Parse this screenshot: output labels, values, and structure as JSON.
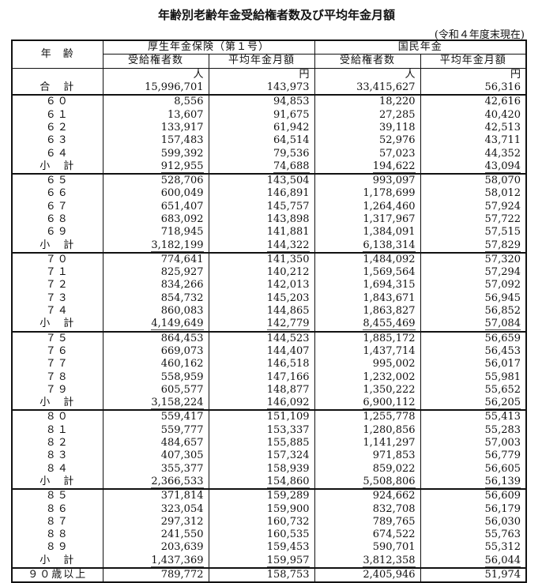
{
  "title": "年齢別老齢年金受給権者数及び平均年金月額",
  "as_of": "(令和４年度末現在)",
  "header": {
    "age": "年　齢",
    "kosei": "厚生年金保険（第１号）",
    "kokumin": "国民年金",
    "recipients": "受給権者数",
    "avg_monthly": "平均年金月額",
    "unit_persons": "人",
    "unit_yen": "円"
  },
  "total": {
    "label": "合　計",
    "values": [
      "15,996,701",
      "143,973",
      "33,415,627",
      "56,316"
    ]
  },
  "groups": [
    {
      "rows": [
        {
          "label": "６０",
          "values": [
            "8,556",
            "94,853",
            "18,220",
            "42,616"
          ]
        },
        {
          "label": "６１",
          "values": [
            "13,607",
            "91,675",
            "27,285",
            "40,420"
          ]
        },
        {
          "label": "６２",
          "values": [
            "133,917",
            "61,942",
            "39,118",
            "42,513"
          ]
        },
        {
          "label": "６３",
          "values": [
            "157,483",
            "64,514",
            "52,976",
            "43,711"
          ]
        },
        {
          "label": "６４",
          "values": [
            "599,392",
            "79,536",
            "57,023",
            "44,352"
          ]
        },
        {
          "label": "小　計",
          "subtotal": true,
          "values": [
            "912,955",
            "74,688",
            "194,622",
            "43,094"
          ]
        }
      ]
    },
    {
      "rows": [
        {
          "label": "６５",
          "values": [
            "528,706",
            "143,504",
            "993,097",
            "58,070"
          ]
        },
        {
          "label": "６６",
          "values": [
            "600,049",
            "146,891",
            "1,178,699",
            "58,012"
          ]
        },
        {
          "label": "６７",
          "values": [
            "651,407",
            "145,757",
            "1,264,460",
            "57,924"
          ]
        },
        {
          "label": "６８",
          "values": [
            "683,092",
            "143,898",
            "1,317,967",
            "57,722"
          ]
        },
        {
          "label": "６９",
          "values": [
            "718,945",
            "141,881",
            "1,384,091",
            "57,515"
          ]
        },
        {
          "label": "小　計",
          "subtotal": true,
          "values": [
            "3,182,199",
            "144,322",
            "6,138,314",
            "57,829"
          ]
        }
      ]
    },
    {
      "rows": [
        {
          "label": "７０",
          "values": [
            "774,641",
            "141,350",
            "1,484,092",
            "57,320"
          ]
        },
        {
          "label": "７１",
          "values": [
            "825,927",
            "140,212",
            "1,569,564",
            "57,294"
          ]
        },
        {
          "label": "７２",
          "values": [
            "834,266",
            "142,013",
            "1,694,315",
            "57,092"
          ]
        },
        {
          "label": "７３",
          "values": [
            "854,732",
            "145,203",
            "1,843,671",
            "56,945"
          ]
        },
        {
          "label": "７４",
          "values": [
            "860,083",
            "144,865",
            "1,863,827",
            "56,852"
          ]
        },
        {
          "label": "小　計",
          "subtotal": true,
          "values": [
            "4,149,649",
            "142,779",
            "8,455,469",
            "57,084"
          ]
        }
      ]
    },
    {
      "rows": [
        {
          "label": "７５",
          "values": [
            "864,453",
            "144,523",
            "1,885,172",
            "56,659"
          ]
        },
        {
          "label": "７６",
          "values": [
            "669,073",
            "144,407",
            "1,437,714",
            "56,453"
          ]
        },
        {
          "label": "７７",
          "values": [
            "460,162",
            "146,518",
            "995,002",
            "56,017"
          ]
        },
        {
          "label": "７８",
          "values": [
            "558,959",
            "147,166",
            "1,232,002",
            "55,981"
          ]
        },
        {
          "label": "７９",
          "values": [
            "605,577",
            "148,877",
            "1,350,222",
            "55,652"
          ]
        },
        {
          "label": "小　計",
          "subtotal": true,
          "values": [
            "3,158,224",
            "146,092",
            "6,900,112",
            "56,205"
          ]
        }
      ]
    },
    {
      "rows": [
        {
          "label": "８０",
          "values": [
            "559,417",
            "151,109",
            "1,255,778",
            "55,413"
          ]
        },
        {
          "label": "８１",
          "values": [
            "559,777",
            "153,337",
            "1,280,856",
            "55,283"
          ]
        },
        {
          "label": "８２",
          "values": [
            "484,657",
            "155,885",
            "1,141,297",
            "57,003"
          ]
        },
        {
          "label": "８３",
          "values": [
            "407,305",
            "157,324",
            "971,853",
            "56,779"
          ]
        },
        {
          "label": "８４",
          "values": [
            "355,377",
            "158,939",
            "859,022",
            "56,605"
          ]
        },
        {
          "label": "小　計",
          "subtotal": true,
          "values": [
            "2,366,533",
            "154,860",
            "5,508,806",
            "56,139"
          ]
        }
      ]
    },
    {
      "rows": [
        {
          "label": "８５",
          "values": [
            "371,814",
            "159,289",
            "924,662",
            "56,609"
          ]
        },
        {
          "label": "８６",
          "values": [
            "323,054",
            "159,900",
            "832,708",
            "56,179"
          ]
        },
        {
          "label": "８７",
          "values": [
            "297,312",
            "160,732",
            "789,765",
            "56,030"
          ]
        },
        {
          "label": "８８",
          "values": [
            "241,550",
            "160,535",
            "674,522",
            "55,763"
          ]
        },
        {
          "label": "８９",
          "values": [
            "203,639",
            "159,453",
            "590,701",
            "55,312"
          ]
        },
        {
          "label": "小　計",
          "subtotal": true,
          "values": [
            "1,437,369",
            "159,957",
            "3,812,358",
            "56,044"
          ]
        }
      ]
    },
    {
      "rows": [
        {
          "label": "９０歳以上",
          "values": [
            "789,772",
            "158,753",
            "2,405,946",
            "51,974"
          ]
        }
      ]
    }
  ]
}
